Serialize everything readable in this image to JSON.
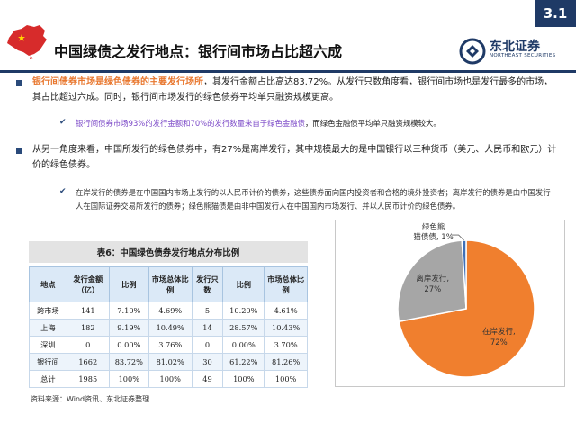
{
  "header": {
    "section": "3.1",
    "title": "中国绿债之发行地点：银行间市场占比超六成",
    "logo": {
      "name": "东北证券",
      "en": "NORTHEAST SECURITIES"
    },
    "accent_color": "#1f3a66"
  },
  "para1": {
    "highlight": "银行间债券市场是绿色债券的主要发行场所",
    "text": "，其发行金额占比高达83.72%。从发行只数角度看，银行间市场也是发行最多的市场，其占比超过六成。同时，银行间市场发行的绿色债券平均单只融资规模更高。"
  },
  "sub1": {
    "highlight": "银行间债券市场93%的发行金额和70%的发行数量来自于绿色金融债",
    "text": "，而绿色金融债平均单只融资规模较大。"
  },
  "para2": {
    "text": "从另一角度来看，中国所发行的绿色债券中，有27%是离岸发行，其中规模最大的是中国银行以三种货币（美元、人民币和欧元）计价的绿色债券。"
  },
  "sub2": {
    "text": "在岸发行的债券是在中国国内市场上发行的以人民币计价的债券，这些债券面向国内投资者和合格的境外投资者；离岸发行的债券是由中国发行人在国际证券交易所发行的债券；绿色熊猫债是由非中国发行人在中国国内市场发行、并以人民币计价的绿色债券。"
  },
  "table": {
    "caption": "表6：中国绿色债券发行地点分布比例",
    "headers": [
      "地点",
      "发行金额（亿）",
      "比例",
      "市场总体比例",
      "发行只数",
      "比例",
      "市场总体比例"
    ],
    "rows": [
      [
        "跨市场",
        "141",
        "7.10%",
        "4.69%",
        "5",
        "10.20%",
        "4.61%"
      ],
      [
        "上海",
        "182",
        "9.19%",
        "10.49%",
        "14",
        "28.57%",
        "10.43%"
      ],
      [
        "深圳",
        "0",
        "0.00%",
        "3.76%",
        "0",
        "0.00%",
        "3.70%"
      ],
      [
        "银行间",
        "1662",
        "83.72%",
        "81.02%",
        "30",
        "61.22%",
        "81.26%"
      ],
      [
        "总计",
        "1985",
        "100%",
        "100%",
        "49",
        "100%",
        "100%"
      ]
    ]
  },
  "chart_data": {
    "type": "pie",
    "slices": [
      {
        "label": "在岸发行",
        "value": 72,
        "display": "72%",
        "color": "#f07f2e"
      },
      {
        "label": "离岸发行",
        "value": 27,
        "display": "27%",
        "color": "#a6a6a6"
      },
      {
        "label": "绿色熊猫债",
        "value": 1,
        "display": "1%",
        "color": "#3e6fb7"
      }
    ]
  },
  "source": "资料来源：Wind资讯、东北证券整理"
}
